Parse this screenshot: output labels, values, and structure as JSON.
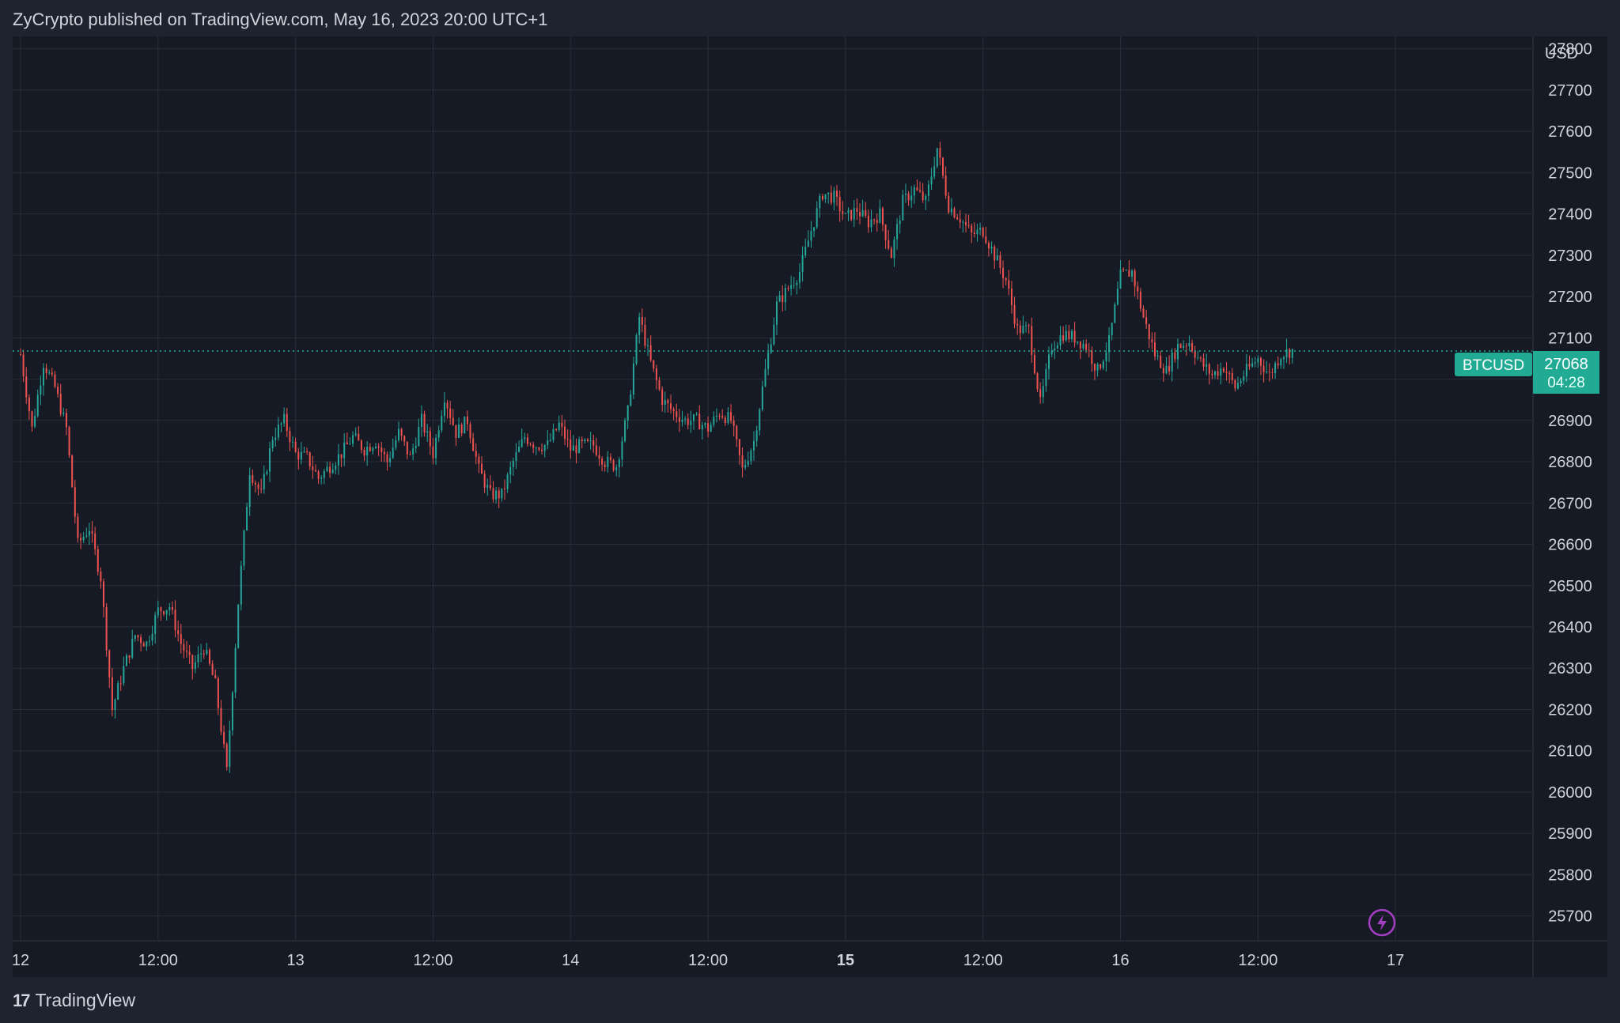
{
  "header": {
    "published_line": "ZyCrypto published on TradingView.com, May 16, 2023 20:00 UTC+1"
  },
  "footer": {
    "logo_glyph": "17",
    "brand": "TradingView"
  },
  "colors": {
    "background": "#1f2330",
    "plot_background": "#161a25",
    "grid": "#2a2e39",
    "text": "#d1d4dc",
    "up": "#26a69a",
    "down": "#ef5350",
    "badge": "#22ab94",
    "lightning": "#a33dc1"
  },
  "chart_data": {
    "type": "candlestick",
    "symbol": "BTCUSD",
    "currency_label": "USD",
    "last_price": 27068,
    "countdown": "04:28",
    "y_range": [
      25640,
      27830
    ],
    "y_ticks": [
      27800,
      27700,
      27600,
      27500,
      27400,
      27300,
      27200,
      27100,
      27000,
      26900,
      26800,
      26700,
      26600,
      26500,
      26400,
      26300,
      26200,
      26100,
      26000,
      25900,
      25800,
      25700
    ],
    "x_range_hours": [
      "May 12 00:00",
      "May 17 12:00"
    ],
    "x_ticks": [
      {
        "label": "12",
        "bold": false
      },
      {
        "label": "12:00",
        "bold": false
      },
      {
        "label": "13",
        "bold": false
      },
      {
        "label": "12:00",
        "bold": false
      },
      {
        "label": "14",
        "bold": false
      },
      {
        "label": "12:00",
        "bold": false
      },
      {
        "label": "15",
        "bold": true
      },
      {
        "label": "12:00",
        "bold": false
      },
      {
        "label": "16",
        "bold": false
      },
      {
        "label": "12:00",
        "bold": false
      },
      {
        "label": "17",
        "bold": false
      }
    ],
    "price_path": [
      [
        0,
        27060
      ],
      [
        1,
        26880
      ],
      [
        2,
        27040
      ],
      [
        3,
        26980
      ],
      [
        4,
        26880
      ],
      [
        5,
        26600
      ],
      [
        6,
        26640
      ],
      [
        7,
        26520
      ],
      [
        8,
        26200
      ],
      [
        9,
        26300
      ],
      [
        10,
        26380
      ],
      [
        11,
        26360
      ],
      [
        12,
        26440
      ],
      [
        13,
        26450
      ],
      [
        14,
        26360
      ],
      [
        15,
        26300
      ],
      [
        16,
        26350
      ],
      [
        17,
        26260
      ],
      [
        18,
        26050
      ],
      [
        19,
        26460
      ],
      [
        20,
        26780
      ],
      [
        21,
        26720
      ],
      [
        22,
        26860
      ],
      [
        23,
        26900
      ],
      [
        24,
        26820
      ],
      [
        25,
        26810
      ],
      [
        26,
        26760
      ],
      [
        27,
        26790
      ],
      [
        28,
        26820
      ],
      [
        29,
        26860
      ],
      [
        30,
        26830
      ],
      [
        31,
        26850
      ],
      [
        32,
        26800
      ],
      [
        33,
        26870
      ],
      [
        34,
        26810
      ],
      [
        35,
        26900
      ],
      [
        36,
        26820
      ],
      [
        37,
        26960
      ],
      [
        38,
        26870
      ],
      [
        39,
        26900
      ],
      [
        40,
        26780
      ],
      [
        41,
        26720
      ],
      [
        42,
        26720
      ],
      [
        43,
        26800
      ],
      [
        44,
        26860
      ],
      [
        45,
        26840
      ],
      [
        46,
        26840
      ],
      [
        47,
        26890
      ],
      [
        48,
        26830
      ],
      [
        49,
        26840
      ],
      [
        50,
        26840
      ],
      [
        51,
        26800
      ],
      [
        52,
        26790
      ],
      [
        53,
        26920
      ],
      [
        54,
        27150
      ],
      [
        55,
        27040
      ],
      [
        56,
        26950
      ],
      [
        57,
        26920
      ],
      [
        58,
        26900
      ],
      [
        59,
        26900
      ],
      [
        60,
        26880
      ],
      [
        61,
        26920
      ],
      [
        62,
        26900
      ],
      [
        63,
        26780
      ],
      [
        64,
        26850
      ],
      [
        65,
        27020
      ],
      [
        66,
        27180
      ],
      [
        67,
        27220
      ],
      [
        68,
        27260
      ],
      [
        69,
        27360
      ],
      [
        70,
        27450
      ],
      [
        71,
        27440
      ],
      [
        72,
        27390
      ],
      [
        73,
        27410
      ],
      [
        74,
        27380
      ],
      [
        75,
        27400
      ],
      [
        76,
        27300
      ],
      [
        77,
        27430
      ],
      [
        78,
        27460
      ],
      [
        79,
        27430
      ],
      [
        80,
        27560
      ],
      [
        81,
        27420
      ],
      [
        82,
        27390
      ],
      [
        83,
        27350
      ],
      [
        84,
        27360
      ],
      [
        85,
        27300
      ],
      [
        86,
        27240
      ],
      [
        87,
        27120
      ],
      [
        88,
        27120
      ],
      [
        89,
        26940
      ],
      [
        90,
        27080
      ],
      [
        91,
        27110
      ],
      [
        92,
        27100
      ],
      [
        93,
        27080
      ],
      [
        94,
        27020
      ],
      [
        95,
        27090
      ],
      [
        96,
        27250
      ],
      [
        97,
        27260
      ],
      [
        98,
        27150
      ],
      [
        99,
        27060
      ],
      [
        100,
        27020
      ],
      [
        101,
        27080
      ],
      [
        102,
        27090
      ],
      [
        103,
        27040
      ],
      [
        104,
        27010
      ],
      [
        105,
        27030
      ],
      [
        106,
        26980
      ],
      [
        107,
        27020
      ],
      [
        108,
        27050
      ],
      [
        109,
        27010
      ],
      [
        110,
        27060
      ],
      [
        111,
        27070
      ]
    ]
  }
}
